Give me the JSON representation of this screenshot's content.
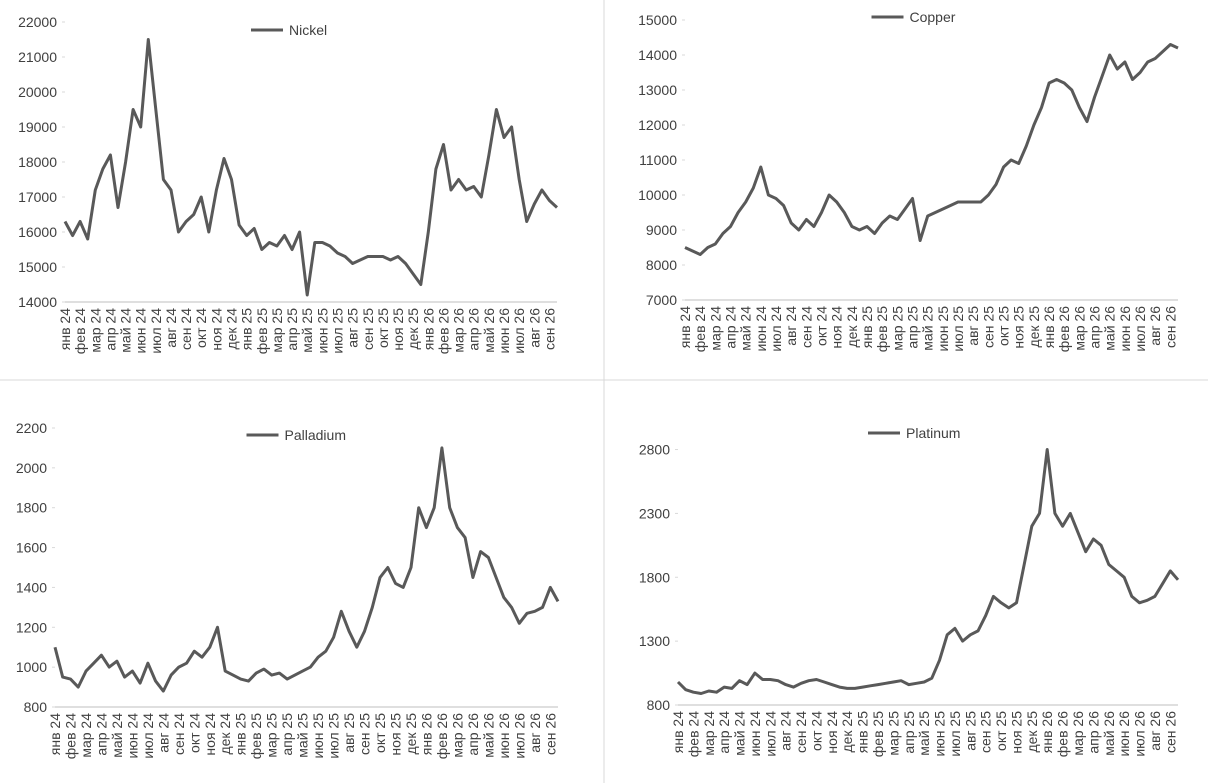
{
  "chart_data": [
    {
      "type": "line",
      "categories": [
        "янв 24",
        null,
        "фев 24",
        null,
        "мар 24",
        null,
        "апр 24",
        null,
        "май 24",
        null,
        "июн 24",
        null,
        "июл 24",
        null,
        "авг 24",
        null,
        "сен 24",
        null,
        "окт 24",
        null,
        "ноя 24",
        null,
        "дек 24",
        null,
        "янв 25",
        null,
        "фев 25",
        null,
        "мар 25",
        null,
        "апр 25",
        null,
        "май 25",
        null,
        "июн 25",
        null,
        "июл 25",
        null,
        "авг 25",
        null,
        "сен 25",
        null,
        "окт 25",
        null,
        "ноя 25",
        null,
        "дек 25",
        null,
        "янв 26",
        null,
        "фев 26",
        null,
        "мар 26",
        null,
        "апр 26",
        null,
        "май 26",
        null,
        "июн 26",
        null,
        "июл 26",
        null,
        "авг 26",
        null,
        "сен 26",
        null
      ],
      "series": [
        {
          "name": "Nickel",
          "color": "#595959",
          "values": [
            16300,
            15900,
            16300,
            15800,
            17200,
            17800,
            18200,
            16700,
            18000,
            19500,
            19000,
            21500,
            19500,
            17500,
            17200,
            16000,
            16300,
            16500,
            17000,
            16000,
            17200,
            18100,
            17500,
            16200,
            15900,
            16100,
            15500,
            15700,
            15600,
            15900,
            15500,
            16000,
            14200,
            15700,
            15700,
            15600,
            15400,
            15300,
            15100,
            15200,
            15300,
            15300,
            15300,
            15200,
            15300,
            15100,
            14800,
            14500,
            16000,
            17800,
            18500,
            17200,
            17500,
            17200,
            17300,
            17000,
            18200,
            19500,
            18700,
            19000,
            17500,
            16300,
            16800,
            17200,
            16900,
            16700
          ]
        }
      ],
      "ylim": [
        14000,
        22000
      ],
      "yticks": [
        14000,
        15000,
        16000,
        17000,
        18000,
        19000,
        20000,
        21000,
        22000
      ],
      "legend": "top"
    },
    {
      "type": "line",
      "categories": [
        "янв 24",
        null,
        "фев 24",
        null,
        "мар 24",
        null,
        "апр 24",
        null,
        "май 24",
        null,
        "июн 24",
        null,
        "июл 24",
        null,
        "авг 24",
        null,
        "сен 24",
        null,
        "окт 24",
        null,
        "ноя 24",
        null,
        "дек 24",
        null,
        "янв 25",
        null,
        "фев 25",
        null,
        "мар 25",
        null,
        "апр 25",
        null,
        "май 25",
        null,
        "июн 25",
        null,
        "июл 25",
        null,
        "авг 25",
        null,
        "сен 25",
        null,
        "окт 25",
        null,
        "ноя 25",
        null,
        "дек 25",
        null,
        "янв 26",
        null,
        "фев 26",
        null,
        "мар 26",
        null,
        "апр 26",
        null,
        "май 26",
        null,
        "июн 26",
        null,
        "июл 26",
        null,
        "авг 26",
        null,
        "сен 26",
        null
      ],
      "series": [
        {
          "name": "Copper",
          "color": "#595959",
          "values": [
            8500,
            8400,
            8300,
            8500,
            8600,
            8900,
            9100,
            9500,
            9800,
            10200,
            10800,
            10000,
            9900,
            9700,
            9200,
            9000,
            9300,
            9100,
            9500,
            10000,
            9800,
            9500,
            9100,
            9000,
            9100,
            8900,
            9200,
            9400,
            9300,
            9600,
            9900,
            8700,
            9400,
            9500,
            9600,
            9700,
            9800,
            9800,
            9800,
            9800,
            10000,
            10300,
            10800,
            11000,
            10900,
            11400,
            12000,
            12500,
            13200,
            13300,
            13200,
            13000,
            12500,
            12100,
            12800,
            13400,
            14000,
            13600,
            13800,
            13300,
            13500,
            13800,
            13900,
            14100,
            14300,
            14200
          ]
        }
      ],
      "ylim": [
        7000,
        15000
      ],
      "yticks": [
        7000,
        8000,
        9000,
        10000,
        11000,
        12000,
        13000,
        14000,
        15000
      ],
      "legend": "top"
    },
    {
      "type": "line",
      "categories": [
        "янв 24",
        null,
        "фев 24",
        null,
        "мар 24",
        null,
        "апр 24",
        null,
        "май 24",
        null,
        "июн 24",
        null,
        "июл 24",
        null,
        "авг 24",
        null,
        "сен 24",
        null,
        "окт 24",
        null,
        "ноя 24",
        null,
        "дек 24",
        null,
        "янв 25",
        null,
        "фев 25",
        null,
        "мар 25",
        null,
        "апр 25",
        null,
        "май 25",
        null,
        "июн 25",
        null,
        "июл 25",
        null,
        "авг 25",
        null,
        "сен 25",
        null,
        "окт 25",
        null,
        "ноя 25",
        null,
        "дек 25",
        null,
        "янв 26",
        null,
        "фев 26",
        null,
        "мар 26",
        null,
        "апр 26",
        null,
        "май 26",
        null,
        "июн 26",
        null,
        "июл 26",
        null,
        "авг 26",
        null,
        "сен 26",
        null
      ],
      "series": [
        {
          "name": "Palladium",
          "color": "#595959",
          "values": [
            1100,
            950,
            940,
            900,
            980,
            1020,
            1060,
            1000,
            1030,
            950,
            980,
            920,
            1020,
            930,
            880,
            960,
            1000,
            1020,
            1080,
            1050,
            1100,
            1200,
            980,
            960,
            940,
            930,
            970,
            990,
            960,
            970,
            940,
            960,
            980,
            1000,
            1050,
            1080,
            1150,
            1280,
            1180,
            1100,
            1180,
            1300,
            1450,
            1500,
            1420,
            1400,
            1500,
            1800,
            1700,
            1800,
            2100,
            1800,
            1700,
            1650,
            1450,
            1580,
            1550,
            1450,
            1350,
            1300,
            1220,
            1270,
            1280,
            1300,
            1400,
            1330
          ]
        }
      ],
      "ylim": [
        800,
        2200
      ],
      "yticks": [
        800,
        1000,
        1200,
        1400,
        1600,
        1800,
        2000,
        2200
      ],
      "legend": "top"
    },
    {
      "type": "line",
      "categories": [
        "янв 24",
        null,
        "фев 24",
        null,
        "мар 24",
        null,
        "апр 24",
        null,
        "май 24",
        null,
        "июн 24",
        null,
        "июл 24",
        null,
        "авг 24",
        null,
        "сен 24",
        null,
        "окт 24",
        null,
        "ноя 24",
        null,
        "дек 24",
        null,
        "янв 25",
        null,
        "фев 25",
        null,
        "мар 25",
        null,
        "апр 25",
        null,
        "май 25",
        null,
        "июн 25",
        null,
        "июл 25",
        null,
        "авг 25",
        null,
        "сен 25",
        null,
        "окт 25",
        null,
        "ноя 25",
        null,
        "дек 25",
        null,
        "янв 26",
        null,
        "фев 26",
        null,
        "мар 26",
        null,
        "апр 26",
        null,
        "май 26",
        null,
        "июн 26",
        null,
        "июл 26",
        null,
        "авг 26",
        null,
        "сен 26",
        null
      ],
      "series": [
        {
          "name": "Platinum",
          "color": "#595959",
          "values": [
            980,
            920,
            900,
            890,
            910,
            900,
            940,
            930,
            990,
            960,
            1050,
            1000,
            1000,
            990,
            960,
            940,
            970,
            990,
            1000,
            980,
            960,
            940,
            930,
            930,
            940,
            950,
            960,
            970,
            980,
            990,
            960,
            970,
            980,
            1010,
            1150,
            1350,
            1400,
            1300,
            1350,
            1380,
            1500,
            1650,
            1600,
            1560,
            1600,
            1900,
            2200,
            2300,
            2800,
            2300,
            2200,
            2300,
            2150,
            2000,
            2100,
            2050,
            1900,
            1850,
            1800,
            1650,
            1600,
            1620,
            1650,
            1750,
            1850,
            1780
          ]
        }
      ],
      "ylim": [
        800,
        3000
      ],
      "yticks": [
        800,
        1300,
        1800,
        2300,
        2800
      ],
      "legend": "top"
    }
  ]
}
